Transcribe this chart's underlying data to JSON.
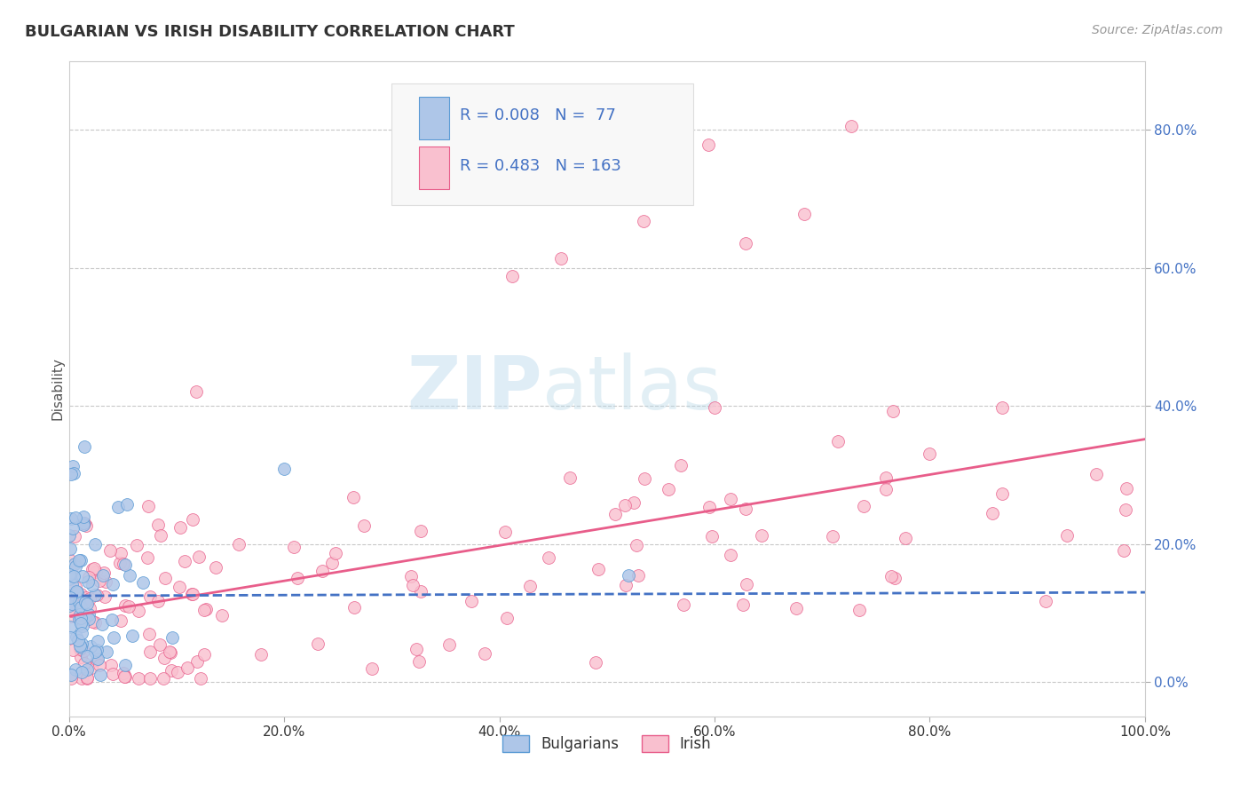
{
  "title": "BULGARIAN VS IRISH DISABILITY CORRELATION CHART",
  "source": "Source: ZipAtlas.com",
  "xlabel_bulgarians": "Bulgarians",
  "xlabel_irish": "Irish",
  "ylabel": "Disability",
  "xlim": [
    0.0,
    1.0
  ],
  "ylim": [
    -0.05,
    0.9
  ],
  "yticks": [
    0.0,
    0.2,
    0.4,
    0.6,
    0.8
  ],
  "xticks": [
    0.0,
    0.2,
    0.4,
    0.6,
    0.8,
    1.0
  ],
  "bg_color": "#ffffff",
  "grid_color": "#c8c8c8",
  "blue_scatter_color": "#aec6e8",
  "blue_scatter_edge": "#5b9bd5",
  "blue_line_color": "#4472c4",
  "pink_scatter_color": "#f9c0cf",
  "pink_scatter_edge": "#e85d8a",
  "pink_line_color": "#e85d8a",
  "legend_text_color": "#4472c4",
  "R_blue": 0.008,
  "N_blue": 77,
  "R_pink": 0.483,
  "N_pink": 163,
  "watermark_zip": "ZIP",
  "watermark_atlas": "atlas",
  "title_fontsize": 13,
  "axis_label_fontsize": 11,
  "tick_fontsize": 11,
  "source_fontsize": 10,
  "legend_fontsize": 13
}
